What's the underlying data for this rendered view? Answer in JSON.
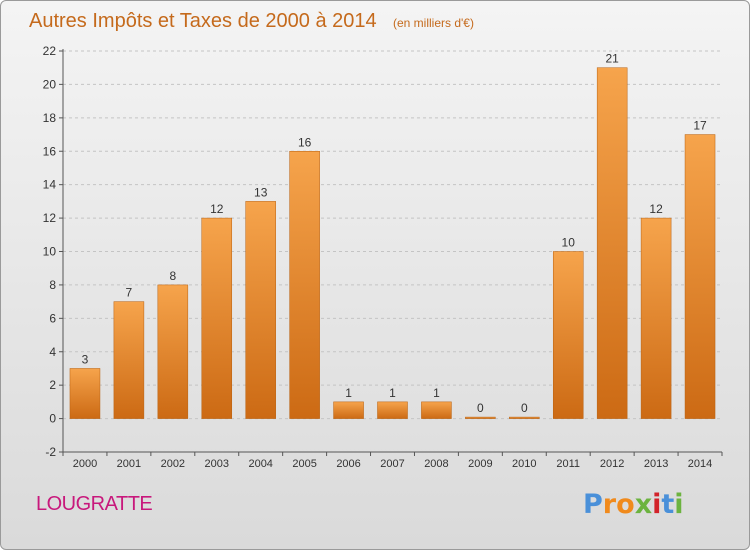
{
  "chart_data": {
    "type": "bar",
    "title": "Autres Impôts et Taxes de 2000 à 2014",
    "subtitle": "(en milliers d'€)",
    "xlabel": "",
    "ylabel": "",
    "categories": [
      "2000",
      "2001",
      "2002",
      "2003",
      "2004",
      "2005",
      "2006",
      "2007",
      "2008",
      "2009",
      "2010",
      "2011",
      "2012",
      "2013",
      "2014"
    ],
    "values": [
      3,
      7,
      8,
      12,
      13,
      16,
      1,
      1,
      1,
      0,
      0,
      10,
      21,
      12,
      17
    ],
    "data_labels": [
      "3",
      "7",
      "8",
      "12",
      "13",
      "16",
      "1",
      "1",
      "1",
      "0",
      "0",
      "10",
      "21",
      "12",
      "17"
    ],
    "ylim": [
      -2,
      22
    ],
    "yticks": [
      -2,
      0,
      2,
      4,
      6,
      8,
      10,
      12,
      14,
      16,
      18,
      20,
      22
    ],
    "grid": "horizontal dashed",
    "bar_color_top": "#f6a44c",
    "bar_color_bottom": "#cc6a14"
  },
  "footer": {
    "town": "LOUGRATTE",
    "town_color": "#c8187c",
    "logo_letters": [
      "P",
      "r",
      "o",
      "x",
      "i",
      "t",
      "i"
    ],
    "logo_colors": [
      "#4a90d9",
      "#f08a1c",
      "#f08a1c",
      "#6cb33f",
      "#d2232a",
      "#4a90d9",
      "#6cb33f"
    ]
  }
}
